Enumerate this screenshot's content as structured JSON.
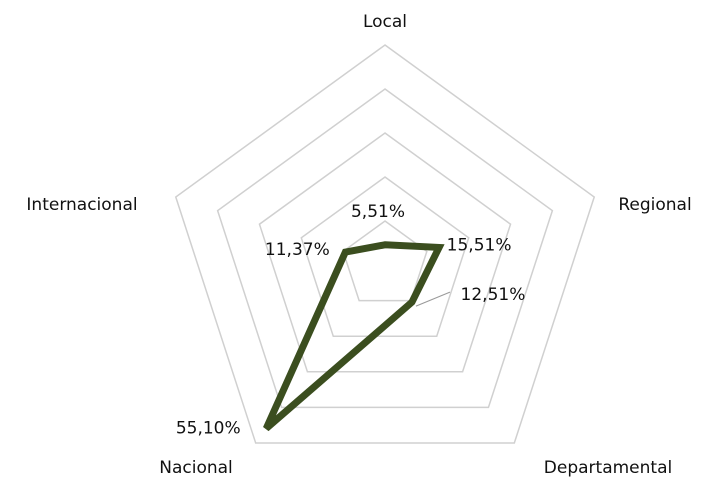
{
  "chart_data": {
    "type": "radar",
    "categories": [
      "Local",
      "Regional",
      "Departamental",
      "Nacional",
      "Internacional"
    ],
    "values": [
      5.51,
      15.51,
      12.51,
      55.1,
      11.37
    ],
    "value_labels": [
      "5,51%",
      "15,51%",
      "12,51%",
      "55,10%",
      "11,37%"
    ],
    "color": "#3b4e1f",
    "rlim": [
      0,
      60
    ],
    "rticks": [
      12,
      24,
      36,
      48,
      60
    ],
    "grid": true
  }
}
